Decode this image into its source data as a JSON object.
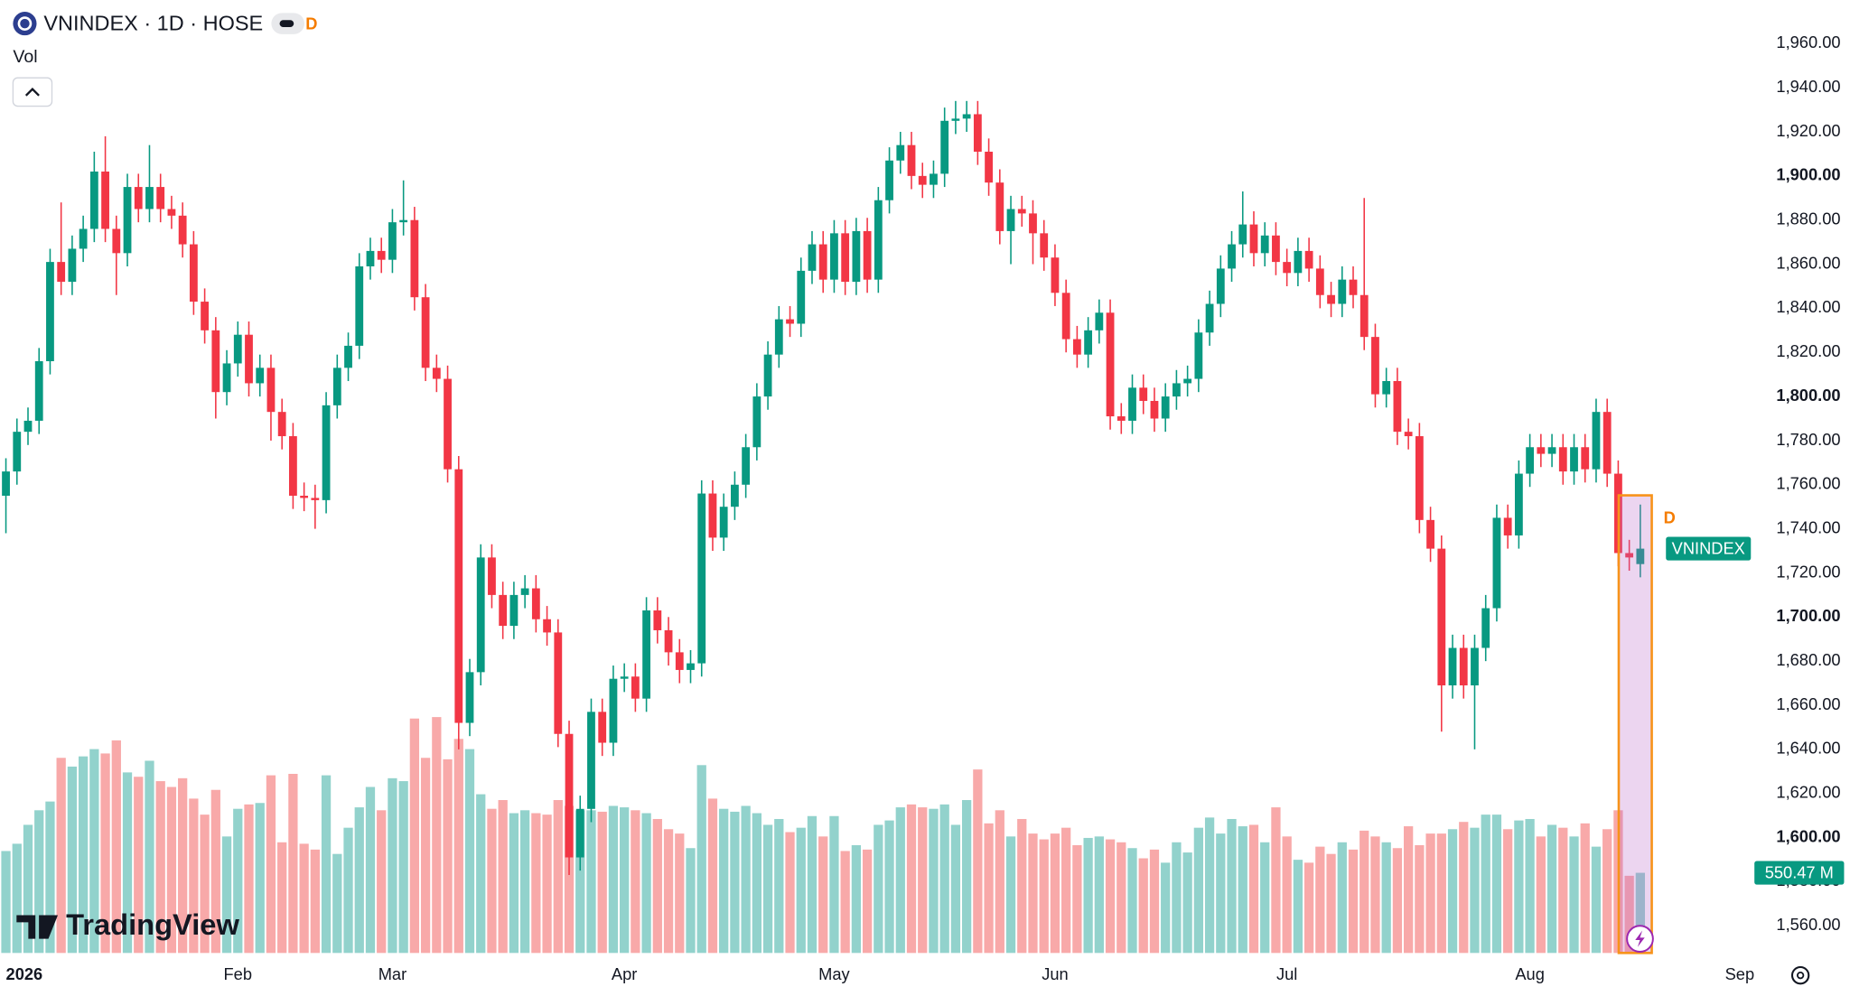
{
  "chart_data": {
    "type": "candlestick",
    "title": "VNINDEX · 1D · HOSE",
    "interval_badge": "D",
    "volume_title": "Vol",
    "brand": "TradingView",
    "price_tag": "VNINDEX",
    "marker_label": "D",
    "last_volume_label": "550.47 M",
    "up_color": "#089981",
    "down_color": "#f23645",
    "volume_up_color": "#92d2cc",
    "volume_down_color": "#f8a9a9",
    "categories": [
      "2026",
      null,
      null,
      null,
      null,
      null,
      null,
      null,
      null,
      null,
      null,
      null,
      null,
      null,
      null,
      null,
      null,
      null,
      null,
      null,
      null,
      "Feb",
      null,
      null,
      null,
      null,
      null,
      null,
      null,
      null,
      null,
      null,
      null,
      null,
      null,
      "Mar",
      null,
      null,
      null,
      null,
      null,
      null,
      null,
      null,
      null,
      null,
      null,
      null,
      null,
      null,
      null,
      null,
      null,
      null,
      null,
      null,
      "Apr",
      null,
      null,
      null,
      null,
      null,
      null,
      null,
      null,
      null,
      null,
      null,
      null,
      null,
      null,
      null,
      null,
      null,
      null,
      "May",
      null,
      null,
      null,
      null,
      null,
      null,
      null,
      null,
      null,
      null,
      null,
      null,
      null,
      null,
      null,
      null,
      null,
      null,
      null,
      "Jun",
      null,
      null,
      null,
      null,
      null,
      null,
      null,
      null,
      null,
      null,
      null,
      null,
      null,
      null,
      null,
      null,
      null,
      null,
      null,
      null,
      "Jul",
      null,
      null,
      null,
      null,
      null,
      null,
      null,
      null,
      null,
      null,
      null,
      null,
      null,
      null,
      null,
      null,
      null,
      null,
      null,
      null,
      null,
      "Aug",
      null,
      null,
      null,
      null,
      null,
      null,
      null,
      null,
      null,
      null,
      null,
      null,
      null,
      null,
      null,
      null,
      null,
      null,
      "Sep"
    ],
    "open": [
      1755,
      1766,
      1784,
      1789,
      1816,
      1861,
      1852,
      1867,
      1876,
      1902,
      1876,
      1865,
      1895,
      1885,
      1895,
      1885,
      1882,
      1869,
      1843,
      1830,
      1802,
      1815,
      1828,
      1806,
      1813,
      1793,
      1782,
      1755,
      1754,
      1753,
      1796,
      1813,
      1823,
      1859,
      1866,
      1862,
      1879,
      1880,
      1845,
      1813,
      1808,
      1767,
      1652,
      1675,
      1727,
      1710,
      1696,
      1710,
      1713,
      1699,
      1693,
      1647,
      1591,
      1613,
      1657,
      1643,
      1672,
      1673,
      1663,
      1703,
      1694,
      1684,
      1676,
      1679,
      1756,
      1736,
      1750,
      1760,
      1777,
      1800,
      1819,
      1835,
      1833,
      1857,
      1869,
      1853,
      1874,
      1852,
      1875,
      1853,
      1889,
      1907,
      1914,
      1900,
      1896,
      1901,
      1925,
      1926,
      1928,
      1911,
      1897,
      1875,
      1885,
      1883,
      1874,
      1863,
      1847,
      1826,
      1819,
      1830,
      1838,
      1791,
      1789,
      1804,
      1798,
      1790,
      1800,
      1806,
      1808,
      1829,
      1842,
      1858,
      1869,
      1878,
      1865,
      1873,
      1861,
      1856,
      1866,
      1858,
      1846,
      1842,
      1853,
      1846,
      1827,
      1801,
      1807,
      1784,
      1782,
      1744,
      1731,
      1669,
      1686,
      1669,
      1686,
      1704,
      1745,
      1737,
      1765,
      1777,
      1774,
      1777,
      1766,
      1777,
      1767,
      1793,
      1765,
      1729,
      1724,
      null,
      null,
      null,
      null,
      null,
      null,
      null,
      null,
      null
    ],
    "high": [
      1772,
      1790,
      1795,
      1822,
      1867,
      1888,
      1873,
      1882,
      1911,
      1918,
      1882,
      1901,
      1901,
      1914,
      1901,
      1891,
      1888,
      1875,
      1849,
      1836,
      1821,
      1834,
      1834,
      1819,
      1819,
      1799,
      1788,
      1761,
      1760,
      1802,
      1819,
      1829,
      1865,
      1872,
      1872,
      1885,
      1898,
      1886,
      1851,
      1819,
      1814,
      1773,
      1681,
      1733,
      1733,
      1716,
      1716,
      1719,
      1719,
      1705,
      1699,
      1653,
      1619,
      1663,
      1663,
      1678,
      1679,
      1679,
      1709,
      1709,
      1700,
      1690,
      1685,
      1762,
      1762,
      1756,
      1766,
      1783,
      1806,
      1825,
      1841,
      1841,
      1863,
      1875,
      1875,
      1880,
      1880,
      1881,
      1881,
      1895,
      1913,
      1920,
      1920,
      1906,
      1907,
      1931,
      1934,
      1934,
      1934,
      1917,
      1903,
      1891,
      1891,
      1889,
      1880,
      1869,
      1853,
      1832,
      1836,
      1844,
      1844,
      1797,
      1810,
      1810,
      1804,
      1806,
      1812,
      1814,
      1835,
      1848,
      1864,
      1875,
      1893,
      1884,
      1879,
      1879,
      1867,
      1872,
      1872,
      1864,
      1852,
      1859,
      1859,
      1890,
      1833,
      1813,
      1813,
      1790,
      1788,
      1750,
      1737,
      1692,
      1692,
      1692,
      1710,
      1751,
      1751,
      1771,
      1783,
      1783,
      1783,
      1783,
      1783,
      1783,
      1799,
      1799,
      1771,
      1735,
      1751,
      null,
      null,
      null,
      null,
      null,
      null,
      null,
      null,
      null
    ],
    "low": [
      1738,
      1760,
      1778,
      1783,
      1810,
      1846,
      1846,
      1861,
      1870,
      1870,
      1846,
      1859,
      1879,
      1879,
      1879,
      1876,
      1863,
      1837,
      1824,
      1790,
      1796,
      1809,
      1800,
      1800,
      1780,
      1776,
      1749,
      1748,
      1740,
      1747,
      1790,
      1807,
      1817,
      1853,
      1856,
      1856,
      1873,
      1839,
      1807,
      1802,
      1761,
      1640,
      1646,
      1669,
      1704,
      1690,
      1690,
      1704,
      1693,
      1687,
      1641,
      1583,
      1585,
      1607,
      1637,
      1637,
      1666,
      1657,
      1657,
      1688,
      1678,
      1670,
      1670,
      1673,
      1730,
      1730,
      1744,
      1754,
      1771,
      1794,
      1813,
      1827,
      1827,
      1851,
      1847,
      1847,
      1846,
      1846,
      1847,
      1847,
      1883,
      1901,
      1894,
      1890,
      1890,
      1895,
      1919,
      1920,
      1905,
      1891,
      1869,
      1860,
      1877,
      1860,
      1857,
      1841,
      1820,
      1813,
      1813,
      1824,
      1785,
      1783,
      1783,
      1792,
      1784,
      1784,
      1794,
      1800,
      1802,
      1823,
      1836,
      1852,
      1863,
      1859,
      1859,
      1855,
      1850,
      1850,
      1852,
      1840,
      1836,
      1836,
      1840,
      1821,
      1795,
      1795,
      1778,
      1776,
      1738,
      1725,
      1648,
      1663,
      1663,
      1640,
      1680,
      1698,
      1731,
      1731,
      1759,
      1768,
      1768,
      1760,
      1760,
      1761,
      1761,
      1759,
      1723,
      1721,
      1718,
      null,
      null,
      null,
      null,
      null,
      null,
      null,
      null,
      null
    ],
    "close": [
      1766,
      1784,
      1789,
      1816,
      1861,
      1852,
      1867,
      1876,
      1902,
      1876,
      1865,
      1895,
      1885,
      1895,
      1885,
      1882,
      1869,
      1843,
      1830,
      1802,
      1815,
      1828,
      1806,
      1813,
      1793,
      1782,
      1755,
      1754,
      1753,
      1796,
      1813,
      1823,
      1859,
      1866,
      1862,
      1879,
      1880,
      1845,
      1813,
      1808,
      1767,
      1652,
      1675,
      1727,
      1710,
      1696,
      1710,
      1713,
      1699,
      1693,
      1647,
      1591,
      1613,
      1657,
      1643,
      1672,
      1673,
      1663,
      1703,
      1694,
      1684,
      1676,
      1679,
      1756,
      1736,
      1750,
      1760,
      1777,
      1800,
      1819,
      1835,
      1833,
      1857,
      1869,
      1853,
      1874,
      1852,
      1875,
      1853,
      1889,
      1907,
      1914,
      1900,
      1896,
      1901,
      1925,
      1926,
      1928,
      1911,
      1897,
      1875,
      1885,
      1883,
      1874,
      1863,
      1847,
      1826,
      1819,
      1830,
      1838,
      1791,
      1789,
      1804,
      1798,
      1790,
      1800,
      1806,
      1808,
      1829,
      1842,
      1858,
      1869,
      1878,
      1865,
      1873,
      1861,
      1856,
      1866,
      1858,
      1846,
      1842,
      1853,
      1846,
      1827,
      1801,
      1807,
      1784,
      1782,
      1744,
      1731,
      1669,
      1686,
      1669,
      1686,
      1704,
      1745,
      1737,
      1765,
      1777,
      1774,
      1777,
      1766,
      1777,
      1767,
      1793,
      1765,
      1729,
      1727,
      1731,
      null,
      null,
      null,
      null,
      null,
      null,
      null,
      null,
      null
    ],
    "volume": [
      700,
      750,
      880,
      980,
      1040,
      1340,
      1280,
      1350,
      1400,
      1370,
      1460,
      1240,
      1210,
      1320,
      1180,
      1140,
      1200,
      1060,
      950,
      1120,
      800,
      990,
      1020,
      1030,
      1220,
      760,
      1230,
      750,
      710,
      1220,
      680,
      860,
      1000,
      1140,
      980,
      1200,
      1180,
      1610,
      1340,
      1620,
      1330,
      1470,
      1400,
      1090,
      990,
      1050,
      960,
      980,
      960,
      950,
      1050,
      1010,
      980,
      980,
      970,
      1010,
      1000,
      980,
      960,
      920,
      850,
      820,
      720,
      1290,
      1060,
      990,
      970,
      1010,
      960,
      880,
      920,
      830,
      860,
      940,
      800,
      940,
      700,
      740,
      710,
      880,
      910,
      1000,
      1020,
      1000,
      990,
      1020,
      880,
      1050,
      1260,
      890,
      980,
      800,
      920,
      820,
      780,
      820,
      860,
      740,
      790,
      800,
      780,
      760,
      720,
      650,
      710,
      620,
      760,
      690,
      860,
      930,
      820,
      920,
      870,
      880,
      760,
      1000,
      800,
      640,
      620,
      730,
      680,
      760,
      710,
      840,
      800,
      760,
      720,
      870,
      740,
      820,
      820,
      850,
      900,
      860,
      950,
      950,
      850,
      910,
      920,
      800,
      880,
      860,
      800,
      890,
      730,
      850,
      980,
      530,
      550.47,
      null,
      null,
      null,
      null,
      null,
      null,
      null,
      null,
      null
    ],
    "ylim": [
      1545,
      1970
    ],
    "yticks": [
      {
        "value": 1560,
        "label": "1,560.00"
      },
      {
        "value": 1580,
        "label": "1,580.00"
      },
      {
        "value": 1600,
        "label": "1,600.00"
      },
      {
        "value": 1620,
        "label": "1,620.00"
      },
      {
        "value": 1640,
        "label": "1,640.00"
      },
      {
        "value": 1660,
        "label": "1,660.00"
      },
      {
        "value": 1680,
        "label": "1,680.00"
      },
      {
        "value": 1700,
        "label": "1,700.00"
      },
      {
        "value": 1720,
        "label": "1,720.00"
      },
      {
        "value": 1740,
        "label": "1,740.00"
      },
      {
        "value": 1760,
        "label": "1,760.00"
      },
      {
        "value": 1780,
        "label": "1,780.00"
      },
      {
        "value": 1800,
        "label": "1,800.00"
      },
      {
        "value": 1820,
        "label": "1,820.00"
      },
      {
        "value": 1840,
        "label": "1,840.00"
      },
      {
        "value": 1860,
        "label": "1,860.00"
      },
      {
        "value": 1880,
        "label": "1,880.00"
      },
      {
        "value": 1900,
        "label": "1,900.00"
      },
      {
        "value": 1920,
        "label": "1,920.00"
      },
      {
        "value": 1940,
        "label": "1,940.00"
      },
      {
        "value": 1960,
        "label": "1,960.00"
      }
    ],
    "grid": false
  }
}
